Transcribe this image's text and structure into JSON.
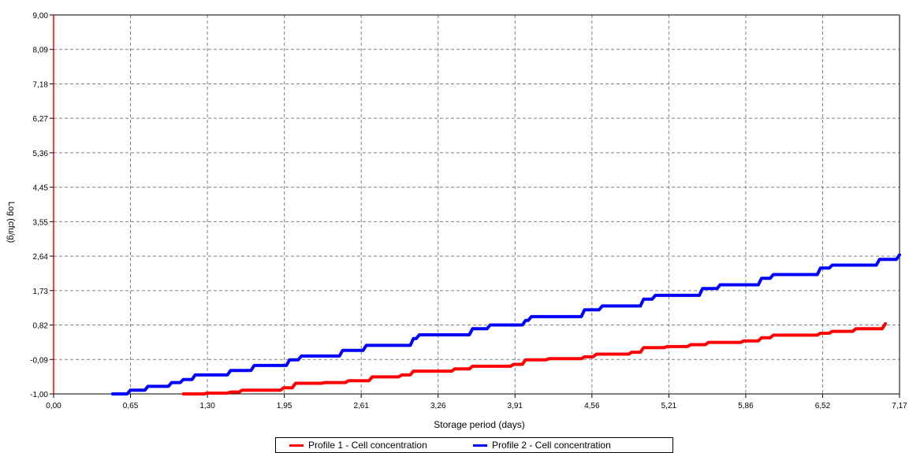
{
  "chart_data": {
    "type": "line",
    "title": "",
    "xlabel": "Storage period (days)",
    "ylabel": "Log (cfu/g)",
    "xlim": [
      0.0,
      7.17
    ],
    "ylim": [
      -1.0,
      9.0
    ],
    "grid": true,
    "legend_position": "bottom",
    "x_tick_labels": [
      "0,00",
      "0,65",
      "1,30",
      "1,95",
      "2,61",
      "3,26",
      "3,91",
      "4,56",
      "5,21",
      "5,86",
      "6,52",
      "7,17"
    ],
    "y_tick_labels": [
      "9,00",
      "8,09",
      "7,18",
      "6,27",
      "5,36",
      "4,45",
      "3,55",
      "2,64",
      "1,73",
      "0,82",
      "-0,09",
      "-1,00"
    ],
    "series": [
      {
        "name": "Profile 1 - Cell concentration",
        "color": "#ff0000",
        "x": [
          1.1,
          1.3,
          1.5,
          1.6,
          1.95,
          2.05,
          2.3,
          2.5,
          2.7,
          2.95,
          3.05,
          3.4,
          3.55,
          3.9,
          4.0,
          4.2,
          4.5,
          4.6,
          4.9,
          5.0,
          5.2,
          5.4,
          5.55,
          5.85,
          6.0,
          6.1,
          6.5,
          6.6,
          6.8,
          7.05
        ],
        "y": [
          -1.0,
          -0.98,
          -0.95,
          -0.9,
          -0.84,
          -0.72,
          -0.7,
          -0.65,
          -0.55,
          -0.5,
          -0.4,
          -0.34,
          -0.27,
          -0.22,
          -0.1,
          -0.07,
          -0.02,
          0.05,
          0.1,
          0.22,
          0.25,
          0.3,
          0.36,
          0.4,
          0.48,
          0.55,
          0.6,
          0.65,
          0.72,
          0.85
        ]
      },
      {
        "name": "Profile 2 - Cell concentration",
        "color": "#0000ff",
        "x": [
          0.5,
          0.65,
          0.8,
          1.0,
          1.1,
          1.2,
          1.5,
          1.7,
          2.0,
          2.1,
          2.45,
          2.65,
          3.05,
          3.1,
          3.55,
          3.7,
          4.0,
          4.05,
          4.5,
          4.65,
          5.0,
          5.1,
          5.5,
          5.65,
          6.0,
          6.1,
          6.5,
          6.6,
          7.0,
          7.17
        ],
        "y": [
          -1.0,
          -0.9,
          -0.8,
          -0.7,
          -0.62,
          -0.5,
          -0.38,
          -0.25,
          -0.1,
          0.0,
          0.15,
          0.28,
          0.46,
          0.56,
          0.72,
          0.82,
          0.94,
          1.04,
          1.22,
          1.32,
          1.5,
          1.6,
          1.78,
          1.88,
          2.05,
          2.15,
          2.32,
          2.4,
          2.55,
          2.67
        ]
      }
    ]
  }
}
